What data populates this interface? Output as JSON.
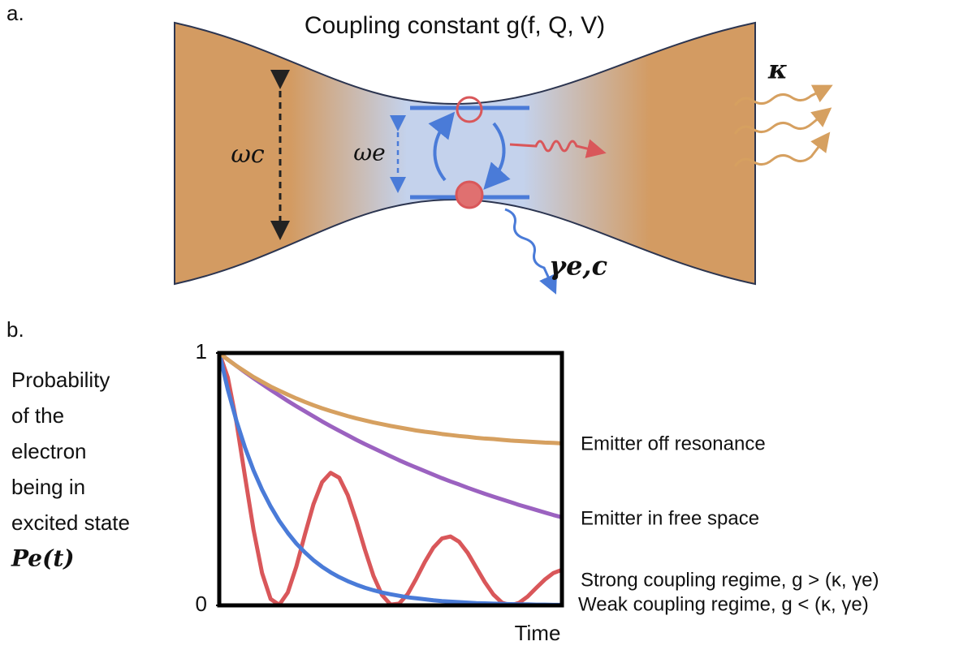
{
  "diagram": {
    "panel_label": "a.",
    "title": "Coupling constant g(f, Q, V)",
    "cavity_frequency": "ωc",
    "emitter_frequency": "ωe",
    "cavity_loss": "κ",
    "emitter_loss": "γe,c"
  },
  "chart_data": {
    "type": "line",
    "panel_label": "b.",
    "ylabel_lines": [
      "Probability",
      "of the",
      "electron",
      "being in",
      "excited state",
      "Pe(t)"
    ],
    "xlabel": "Time",
    "x": [
      0,
      0.25,
      0.5,
      0.75,
      1,
      1.25,
      1.5,
      1.75,
      2,
      2.25,
      2.5,
      2.75,
      3,
      3.25,
      3.5,
      3.75,
      4,
      4.25,
      4.5,
      4.75,
      5,
      5.25,
      5.5,
      5.75,
      6,
      6.25,
      6.5,
      6.75,
      7,
      7.25,
      7.5,
      7.75,
      8,
      8.25,
      8.5,
      8.75,
      9,
      9.25,
      9.5,
      9.75,
      10
    ],
    "xlim": [
      0,
      10
    ],
    "ylim": [
      0,
      1
    ],
    "yticks": [
      0,
      1
    ],
    "series": [
      {
        "name": "Emitter off resonance",
        "color": "#d6a060",
        "values": [
          1,
          0.974,
          0.949,
          0.927,
          0.905,
          0.886,
          0.867,
          0.851,
          0.835,
          0.82,
          0.806,
          0.793,
          0.781,
          0.77,
          0.76,
          0.75,
          0.741,
          0.733,
          0.725,
          0.718,
          0.711,
          0.705,
          0.699,
          0.693,
          0.688,
          0.684,
          0.679,
          0.675,
          0.671,
          0.668,
          0.664,
          0.661,
          0.659,
          0.656,
          0.653,
          0.651,
          0.649,
          0.647,
          0.645,
          0.644,
          0.642
        ]
      },
      {
        "name": "Emitter in free space",
        "color": "#9b62c0",
        "values": [
          1,
          0.974,
          0.949,
          0.924,
          0.9,
          0.877,
          0.854,
          0.832,
          0.81,
          0.789,
          0.769,
          0.749,
          0.729,
          0.71,
          0.692,
          0.674,
          0.656,
          0.639,
          0.623,
          0.607,
          0.591,
          0.575,
          0.56,
          0.546,
          0.532,
          0.518,
          0.504,
          0.491,
          0.479,
          0.466,
          0.454,
          0.442,
          0.431,
          0.42,
          0.409,
          0.398,
          0.388,
          0.378,
          0.368,
          0.358,
          0.349
        ]
      },
      {
        "name": "Strong coupling regime, g > (κ, γe)",
        "color": "#d9575a",
        "values": [
          1,
          0.903,
          0.728,
          0.512,
          0.3,
          0.128,
          0.025,
          0.002,
          0.051,
          0.154,
          0.281,
          0.401,
          0.488,
          0.525,
          0.506,
          0.437,
          0.335,
          0.221,
          0.117,
          0.041,
          0.003,
          0.007,
          0.045,
          0.106,
          0.172,
          0.229,
          0.265,
          0.273,
          0.252,
          0.208,
          0.15,
          0.092,
          0.043,
          0.011,
          0,
          0.01,
          0.035,
          0.069,
          0.102,
          0.128,
          0.141
        ]
      },
      {
        "name": "Weak coupling regime, g < (κ, γe)",
        "color": "#4a7bd8",
        "values": [
          1,
          0.855,
          0.732,
          0.626,
          0.535,
          0.458,
          0.392,
          0.335,
          0.287,
          0.245,
          0.21,
          0.179,
          0.153,
          0.131,
          0.112,
          0.096,
          0.082,
          0.07,
          0.06,
          0.051,
          0.044,
          0.038,
          0.032,
          0.028,
          0.024,
          0.02,
          0.017,
          0.015,
          0.013,
          0.011,
          0.009,
          0.008,
          0.007,
          0.006,
          0.005,
          0.004,
          0.004,
          0.003,
          0.003,
          0.002,
          0.002
        ]
      }
    ]
  }
}
